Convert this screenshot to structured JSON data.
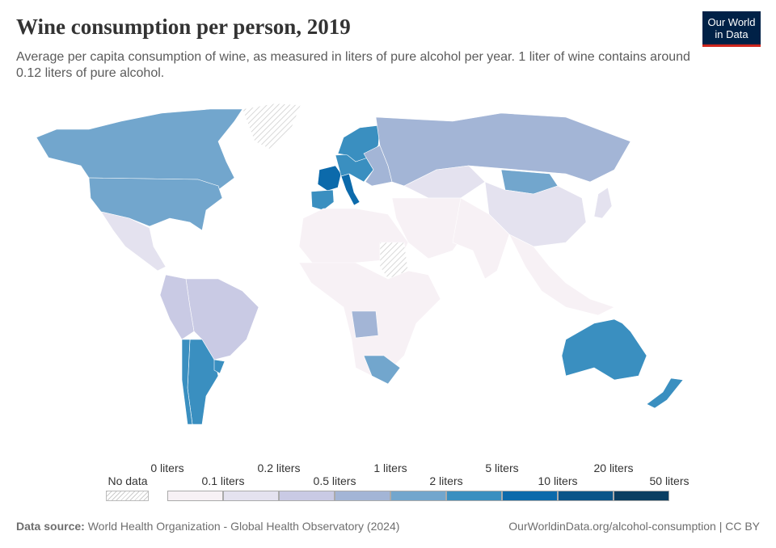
{
  "header": {
    "title": "Wine consumption per person, 2019",
    "subtitle": "Average per capita consumption of wine, as measured in liters of pure alcohol per year. 1 liter of wine contains around 0.12 liters of pure alcohol.",
    "logo_line1": "Our World",
    "logo_line2": "in Data"
  },
  "chart_data": {
    "type": "choropleth",
    "title": "Wine consumption per person, 2019",
    "legend": {
      "no_data_label": "No data",
      "bins": [
        {
          "from": "0 liters",
          "to": "0.1 liters",
          "color": "#f7f1f5"
        },
        {
          "from": "0.1 liters",
          "to": "0.2 liters",
          "color": "#e4e2ef"
        },
        {
          "from": "0.2 liters",
          "to": "0.5 liters",
          "color": "#c9cae4"
        },
        {
          "from": "0.5 liters",
          "to": "1 liters",
          "color": "#a3b5d6"
        },
        {
          "from": "1 liters",
          "to": "2 liters",
          "color": "#72a6cd"
        },
        {
          "from": "2 liters",
          "to": "5 liters",
          "color": "#3a8fc0"
        },
        {
          "from": "5 liters",
          "to": "10 liters",
          "color": "#0c6aab"
        },
        {
          "from": "10 liters",
          "to": "20 liters",
          "color": "#0b5589"
        },
        {
          "from": "20 liters",
          "to": "50 liters",
          "color": "#0a3e62"
        }
      ],
      "labels_top": [
        "0 liters",
        "0.2 liters",
        "1 liters",
        "5 liters",
        "20 liters"
      ],
      "labels_bottom": [
        "0.1 liters",
        "0.5 liters",
        "2 liters",
        "10 liters",
        "50 liters"
      ]
    },
    "regions": [
      {
        "name": "Canada",
        "bin": 4
      },
      {
        "name": "United States",
        "bin": 4
      },
      {
        "name": "Greenland",
        "bin": null
      },
      {
        "name": "Mexico & Central America",
        "bin": 1
      },
      {
        "name": "Brazil",
        "bin": 2
      },
      {
        "name": "Argentina",
        "bin": 5
      },
      {
        "name": "Chile",
        "bin": 5
      },
      {
        "name": "Western South America",
        "bin": 2
      },
      {
        "name": "Uruguay",
        "bin": 5
      },
      {
        "name": "France",
        "bin": 6
      },
      {
        "name": "Iberia",
        "bin": 5
      },
      {
        "name": "Italy",
        "bin": 6
      },
      {
        "name": "Central Europe",
        "bin": 5
      },
      {
        "name": "Scandinavia",
        "bin": 5
      },
      {
        "name": "Eastern Europe",
        "bin": 3
      },
      {
        "name": "Russia",
        "bin": 3
      },
      {
        "name": "Kazakhstan",
        "bin": 1
      },
      {
        "name": "Mongolia",
        "bin": 4
      },
      {
        "name": "China",
        "bin": 1
      },
      {
        "name": "Middle East",
        "bin": 0
      },
      {
        "name": "India & South Asia",
        "bin": 0
      },
      {
        "name": "Southeast Asia",
        "bin": 0
      },
      {
        "name": "North Africa",
        "bin": 0
      },
      {
        "name": "Sub-Saharan Africa",
        "bin": 0
      },
      {
        "name": "Angola",
        "bin": 3
      },
      {
        "name": "South Africa",
        "bin": 4
      },
      {
        "name": "Australia",
        "bin": 5
      },
      {
        "name": "New Zealand",
        "bin": 5
      },
      {
        "name": "Japan",
        "bin": 1
      },
      {
        "name": "Sudan",
        "bin": null
      }
    ]
  },
  "footer": {
    "source_label": "Data source:",
    "source_text": "World Health Organization - Global Health Observatory (2024)",
    "url_text": "OurWorldinData.org/alcohol-consumption | CC BY"
  }
}
